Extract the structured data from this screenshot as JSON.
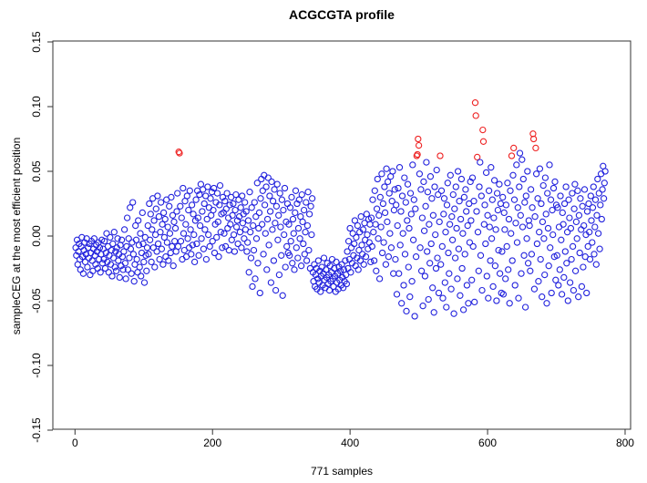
{
  "figure": {
    "background": "#ffffff"
  },
  "chart_data": {
    "type": "scatter",
    "title": "ACGCGTA profile",
    "xlabel": "771 samples",
    "ylabel": "sampleCEG at the most efficient position",
    "n_samples": 771,
    "x_values": "sample index 1..771",
    "xlim": [
      0,
      800
    ],
    "ylim": [
      -0.15,
      0.15
    ],
    "x_ticks": [
      0,
      200,
      400,
      600,
      800
    ],
    "y_ticks": [
      {
        "label": "0.15",
        "value": 0.15
      },
      {
        "label": "0.10",
        "value": 0.1
      },
      {
        "label": "0.05",
        "value": 0.05
      },
      {
        "label": "0.00",
        "value": 0.0
      },
      {
        "label": "-0.05",
        "value": -0.05
      },
      {
        "label": "-0.10",
        "value": -0.1
      },
      {
        "label": "-0.15",
        "value": -0.15
      }
    ],
    "grid": false,
    "legend": "none",
    "marker": "open-circle",
    "colors": {
      "normal": "#2222dd",
      "outlier": "#ee2222",
      "axis": "#333333",
      "text": "#000000"
    },
    "y_scale": 0.001,
    "outlier_x": [
      151,
      152,
      497,
      498,
      499,
      500,
      531,
      582,
      583,
      585,
      593,
      594,
      635,
      638,
      666,
      667,
      670
    ],
    "y_milli": [
      -9,
      -15,
      -3,
      -22,
      -12,
      -6,
      -18,
      -26,
      -8,
      -1,
      -16,
      -29,
      -11,
      -5,
      -20,
      -14,
      -2,
      -24,
      -9,
      -17,
      -6,
      -30,
      -13,
      -4,
      -19,
      -27,
      -10,
      -2,
      -15,
      -22,
      -7,
      -12,
      -25,
      -5,
      -18,
      -9,
      -28,
      -14,
      -3,
      -21,
      -10,
      -18,
      -4,
      -25,
      -13,
      2,
      -20,
      -8,
      -28,
      -15,
      -1,
      -22,
      -11,
      -31,
      -6,
      -17,
      3,
      -24,
      -12,
      -27,
      -9,
      -2,
      -19,
      -14,
      -32,
      -7,
      -23,
      -3,
      -16,
      -26,
      -12,
      5,
      -21,
      -33,
      -8,
      14,
      -26,
      -2,
      -17,
      22,
      -10,
      -29,
      -5,
      26,
      -14,
      -35,
      -22,
      8,
      -3,
      -18,
      -28,
      12,
      -7,
      -24,
      2,
      -31,
      -13,
      18,
      -6,
      -20,
      -36,
      -1,
      -15,
      -27,
      -9,
      8,
      -14,
      25,
      -3,
      17,
      -20,
      5,
      29,
      -9,
      12,
      -24,
      1,
      21,
      -12,
      31,
      -6,
      15,
      -18,
      3,
      26,
      -10,
      9,
      -22,
      18,
      -1,
      13,
      -16,
      28,
      -5,
      7,
      -19,
      23,
      2,
      -13,
      30,
      -8,
      16,
      -23,
      11,
      -4,
      6,
      -12,
      19,
      33,
      -8,
      65,
      64,
      23,
      -4,
      14,
      -18,
      37,
      2,
      -11,
      27,
      9,
      -16,
      31,
      -2,
      20,
      -9,
      35,
      5,
      -14,
      24,
      -7,
      17,
      1,
      -20,
      12,
      28,
      -6,
      35,
      14,
      -15,
      32,
      8,
      40,
      -2,
      19,
      36,
      -10,
      25,
      5,
      31,
      -18,
      13,
      38,
      1,
      22,
      -8,
      29,
      16,
      34,
      -4,
      20,
      37,
      -13,
      9,
      26,
      -1,
      33,
      11,
      -16,
      24,
      39,
      3,
      17,
      -9,
      30,
      18,
      2,
      27,
      -8,
      21,
      33,
      6,
      14,
      -11,
      24,
      9,
      30,
      -3,
      16,
      25,
      1,
      -12,
      20,
      32,
      7,
      12,
      -6,
      28,
      15,
      3,
      22,
      -9,
      31,
      10,
      17,
      -2,
      26,
      5,
      19,
      -12,
      -5,
      12,
      -28,
      34,
      3,
      -17,
      22,
      -39,
      8,
      -11,
      26,
      -33,
      15,
      -2,
      41,
      -21,
      6,
      18,
      -44,
      29,
      44,
      9,
      35,
      -14,
      47,
      24,
      2,
      38,
      -26,
      13,
      45,
      -7,
      31,
      19,
      -36,
      42,
      5,
      27,
      -19,
      36,
      10,
      -42,
      23,
      40,
      -3,
      16,
      -30,
      33,
      7,
      -15,
      28,
      -46,
      20,
      1,
      37,
      -24,
      11,
      -8,
      25,
      -13,
      9,
      -15,
      22,
      -4,
      30,
      -21,
      13,
      2,
      -26,
      18,
      35,
      -9,
      25,
      -17,
      6,
      28,
      -2,
      15,
      -23,
      32,
      11,
      -6,
      20,
      -14,
      3,
      26,
      -19,
      8,
      34,
      -11,
      17,
      -25,
      23,
      1,
      29,
      -28,
      -35,
      -22,
      -39,
      -30,
      -25,
      -41,
      -33,
      -19,
      -36,
      -27,
      -43,
      -31,
      -24,
      -38,
      -29,
      -17,
      -34,
      -40,
      -26,
      -32,
      -21,
      -37,
      -30,
      -42,
      -23,
      -35,
      -28,
      -18,
      -33,
      -39,
      -25,
      -31,
      -43,
      -20,
      -36,
      -29,
      -41,
      -24,
      -34,
      -27,
      -38,
      -22,
      -32,
      -40,
      -26,
      -35,
      -19,
      -30,
      -37,
      -12,
      -25,
      -4,
      -18,
      6,
      -28,
      -9,
      -21,
      2,
      -15,
      -6,
      12,
      -23,
      -1,
      -17,
      8,
      -26,
      -11,
      3,
      -19,
      15,
      -7,
      -14,
      5,
      -22,
      10,
      -3,
      -16,
      17,
      1,
      -10,
      13,
      -5,
      9,
      -20,
      14,
      -8,
      28,
      3,
      -19,
      35,
      9,
      -27,
      21,
      44,
      -2,
      16,
      -33,
      30,
      7,
      48,
      -13,
      25,
      -5,
      38,
      18,
      -22,
      52,
      11,
      42,
      -16,
      33,
      2,
      46,
      -9,
      27,
      50,
      -29,
      20,
      36,
      -18,
      24,
      -45,
      8,
      37,
      -29,
      53,
      -7,
      19,
      -52,
      31,
      2,
      -38,
      45,
      -14,
      26,
      -58,
      12,
      40,
      -24,
      6,
      -47,
      33,
      17,
      -35,
      55,
      -3,
      28,
      -62,
      21,
      -16,
      62,
      63,
      75,
      70,
      48,
      -9,
      36,
      -27,
      14,
      -54,
      42,
      4,
      -31,
      23,
      57,
      -12,
      34,
      -49,
      9,
      -21,
      46,
      -6,
      29,
      -40,
      16,
      -59,
      38,
      1,
      -25,
      51,
      -17,
      32,
      -44,
      11,
      62,
      -22,
      35,
      -8,
      -48,
      17,
      29,
      -36,
      3,
      -55,
      24,
      41,
      -13,
      -29,
      9,
      47,
      -41,
      15,
      -3,
      32,
      -60,
      21,
      -17,
      38,
      6,
      -33,
      50,
      -10,
      27,
      -46,
      13,
      44,
      -25,
      2,
      -57,
      30,
      -14,
      36,
      19,
      -38,
      8,
      -52,
      25,
      -5,
      42,
      12,
      -34,
      45,
      -8,
      27,
      -51,
      103,
      93,
      19,
      61,
      3,
      -27,
      38,
      57,
      -15,
      31,
      -42,
      82,
      73,
      9,
      24,
      -6,
      49,
      -31,
      16,
      -48,
      35,
      7,
      -19,
      53,
      -2,
      28,
      -39,
      14,
      43,
      -23,
      5,
      -50,
      33,
      20,
      -11,
      40,
      -29,
      25,
      -44,
      -12,
      30,
      -45,
      18,
      5,
      -33,
      24,
      -8,
      41,
      -26,
      13,
      -52,
      35,
      2,
      62,
      -19,
      47,
      68,
      28,
      -38,
      10,
      55,
      -5,
      22,
      -48,
      38,
      64,
      16,
      -29,
      59,
      7,
      44,
      -15,
      26,
      -55,
      31,
      -2,
      50,
      -21,
      12,
      8,
      -27,
      36,
      -14,
      22,
      79,
      75,
      -41,
      15,
      68,
      48,
      -6,
      29,
      -35,
      3,
      52,
      -18,
      25,
      -47,
      11,
      39,
      -2,
      -30,
      45,
      17,
      -52,
      33,
      6,
      -23,
      55,
      -9,
      28,
      -44,
      20,
      1,
      37,
      -16,
      42,
      -34,
      24,
      -15,
      22,
      -38,
      7,
      -26,
      31,
      -3,
      -45,
      18,
      9,
      -32,
      25,
      -12,
      38,
      -21,
      3,
      -50,
      28,
      14,
      -36,
      6,
      -18,
      33,
      -8,
      -42,
      21,
      40,
      -27,
      11,
      -2,
      35,
      -47,
      16,
      -13,
      29,
      5,
      -39,
      23,
      -24,
      8,
      36,
      -16,
      1,
      -44,
      19,
      -8,
      25,
      3,
      -18,
      31,
      12,
      -5,
      22,
      38,
      -14,
      7,
      28,
      -22,
      16,
      44,
      2,
      33,
      -10,
      24,
      48,
      13,
      36,
      54,
      29,
      41,
      50
    ]
  }
}
